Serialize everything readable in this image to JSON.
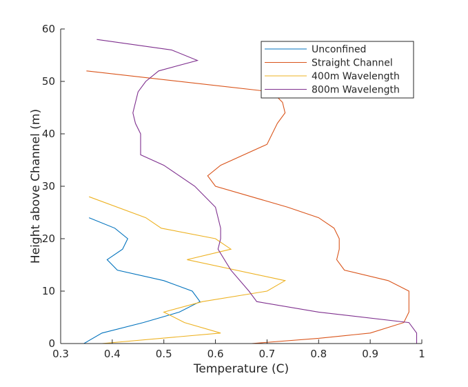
{
  "chart_data": {
    "type": "line",
    "title": "",
    "xlabel": "Temperature (C)",
    "ylabel": "Height above Channel (m)",
    "xlim": [
      0.3,
      1
    ],
    "ylim": [
      0,
      60
    ],
    "xticks": [
      "0.3",
      "0.4",
      "0.5",
      "0.6",
      "0.7",
      "0.8",
      "0.9",
      "1"
    ],
    "yticks": [
      "0",
      "10",
      "20",
      "30",
      "40",
      "50",
      "60"
    ],
    "grid": false,
    "legend_position": "top-right",
    "series": [
      {
        "name": "Unconfined",
        "color": "#0072BD",
        "points": [
          [
            0.345,
            0
          ],
          [
            0.38,
            2
          ],
          [
            0.46,
            4
          ],
          [
            0.53,
            6
          ],
          [
            0.57,
            8
          ],
          [
            0.555,
            10
          ],
          [
            0.5,
            12
          ],
          [
            0.41,
            14
          ],
          [
            0.39,
            16
          ],
          [
            0.42,
            18
          ],
          [
            0.43,
            20
          ],
          [
            0.405,
            22
          ],
          [
            0.355,
            24
          ]
        ]
      },
      {
        "name": "Straight Channel",
        "color": "#D95319",
        "points": [
          [
            0.67,
            0
          ],
          [
            0.8,
            1
          ],
          [
            0.9,
            2
          ],
          [
            0.965,
            4
          ],
          [
            0.975,
            6
          ],
          [
            0.975,
            10
          ],
          [
            0.935,
            12
          ],
          [
            0.85,
            14
          ],
          [
            0.835,
            16
          ],
          [
            0.84,
            18
          ],
          [
            0.84,
            20
          ],
          [
            0.83,
            22
          ],
          [
            0.8,
            24
          ],
          [
            0.74,
            26
          ],
          [
            0.6,
            30
          ],
          [
            0.585,
            32
          ],
          [
            0.61,
            34
          ],
          [
            0.7,
            38
          ],
          [
            0.72,
            42
          ],
          [
            0.735,
            44
          ],
          [
            0.73,
            46
          ],
          [
            0.71,
            48
          ],
          [
            0.35,
            52
          ]
        ]
      },
      {
        "name": "400m Wavelength",
        "color": "#EDB120",
        "points": [
          [
            0.38,
            0
          ],
          [
            0.61,
            2
          ],
          [
            0.54,
            4
          ],
          [
            0.5,
            6
          ],
          [
            0.575,
            8
          ],
          [
            0.7,
            10
          ],
          [
            0.735,
            12
          ],
          [
            0.545,
            16
          ],
          [
            0.63,
            18
          ],
          [
            0.6,
            20
          ],
          [
            0.495,
            22
          ],
          [
            0.465,
            24
          ],
          [
            0.355,
            28
          ]
        ]
      },
      {
        "name": "800m Wavelength",
        "color": "#7E2F8E",
        "points": [
          [
            0.99,
            0
          ],
          [
            0.99,
            2
          ],
          [
            0.975,
            4
          ],
          [
            0.8,
            6
          ],
          [
            0.68,
            8
          ],
          [
            0.665,
            10
          ],
          [
            0.63,
            14
          ],
          [
            0.605,
            18
          ],
          [
            0.61,
            20
          ],
          [
            0.61,
            22
          ],
          [
            0.6,
            26
          ],
          [
            0.56,
            30
          ],
          [
            0.5,
            34
          ],
          [
            0.455,
            36
          ],
          [
            0.455,
            40
          ],
          [
            0.445,
            42
          ],
          [
            0.44,
            44
          ],
          [
            0.45,
            48
          ],
          [
            0.465,
            50
          ],
          [
            0.49,
            52
          ],
          [
            0.565,
            54
          ],
          [
            0.515,
            56
          ],
          [
            0.37,
            58
          ]
        ]
      }
    ]
  }
}
